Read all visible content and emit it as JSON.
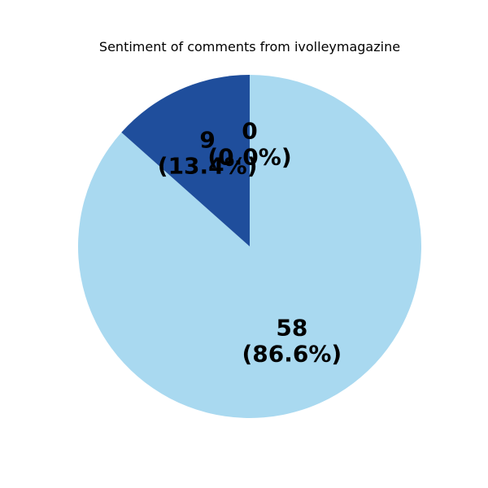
{
  "chart_data": {
    "type": "pie",
    "title": "Sentiment of comments from ivolleymagazine",
    "slices": [
      {
        "value": 58,
        "label": "58\n(86.6%)",
        "color": "#a9d9f0"
      },
      {
        "value": 9,
        "label": "9\n(13.4%)",
        "color": "#1f4e9c"
      },
      {
        "value": 0,
        "label": "0\n(0.0%)",
        "color": "#a9d9f0"
      }
    ],
    "start_angle_deg": 90,
    "counterclock": false
  }
}
